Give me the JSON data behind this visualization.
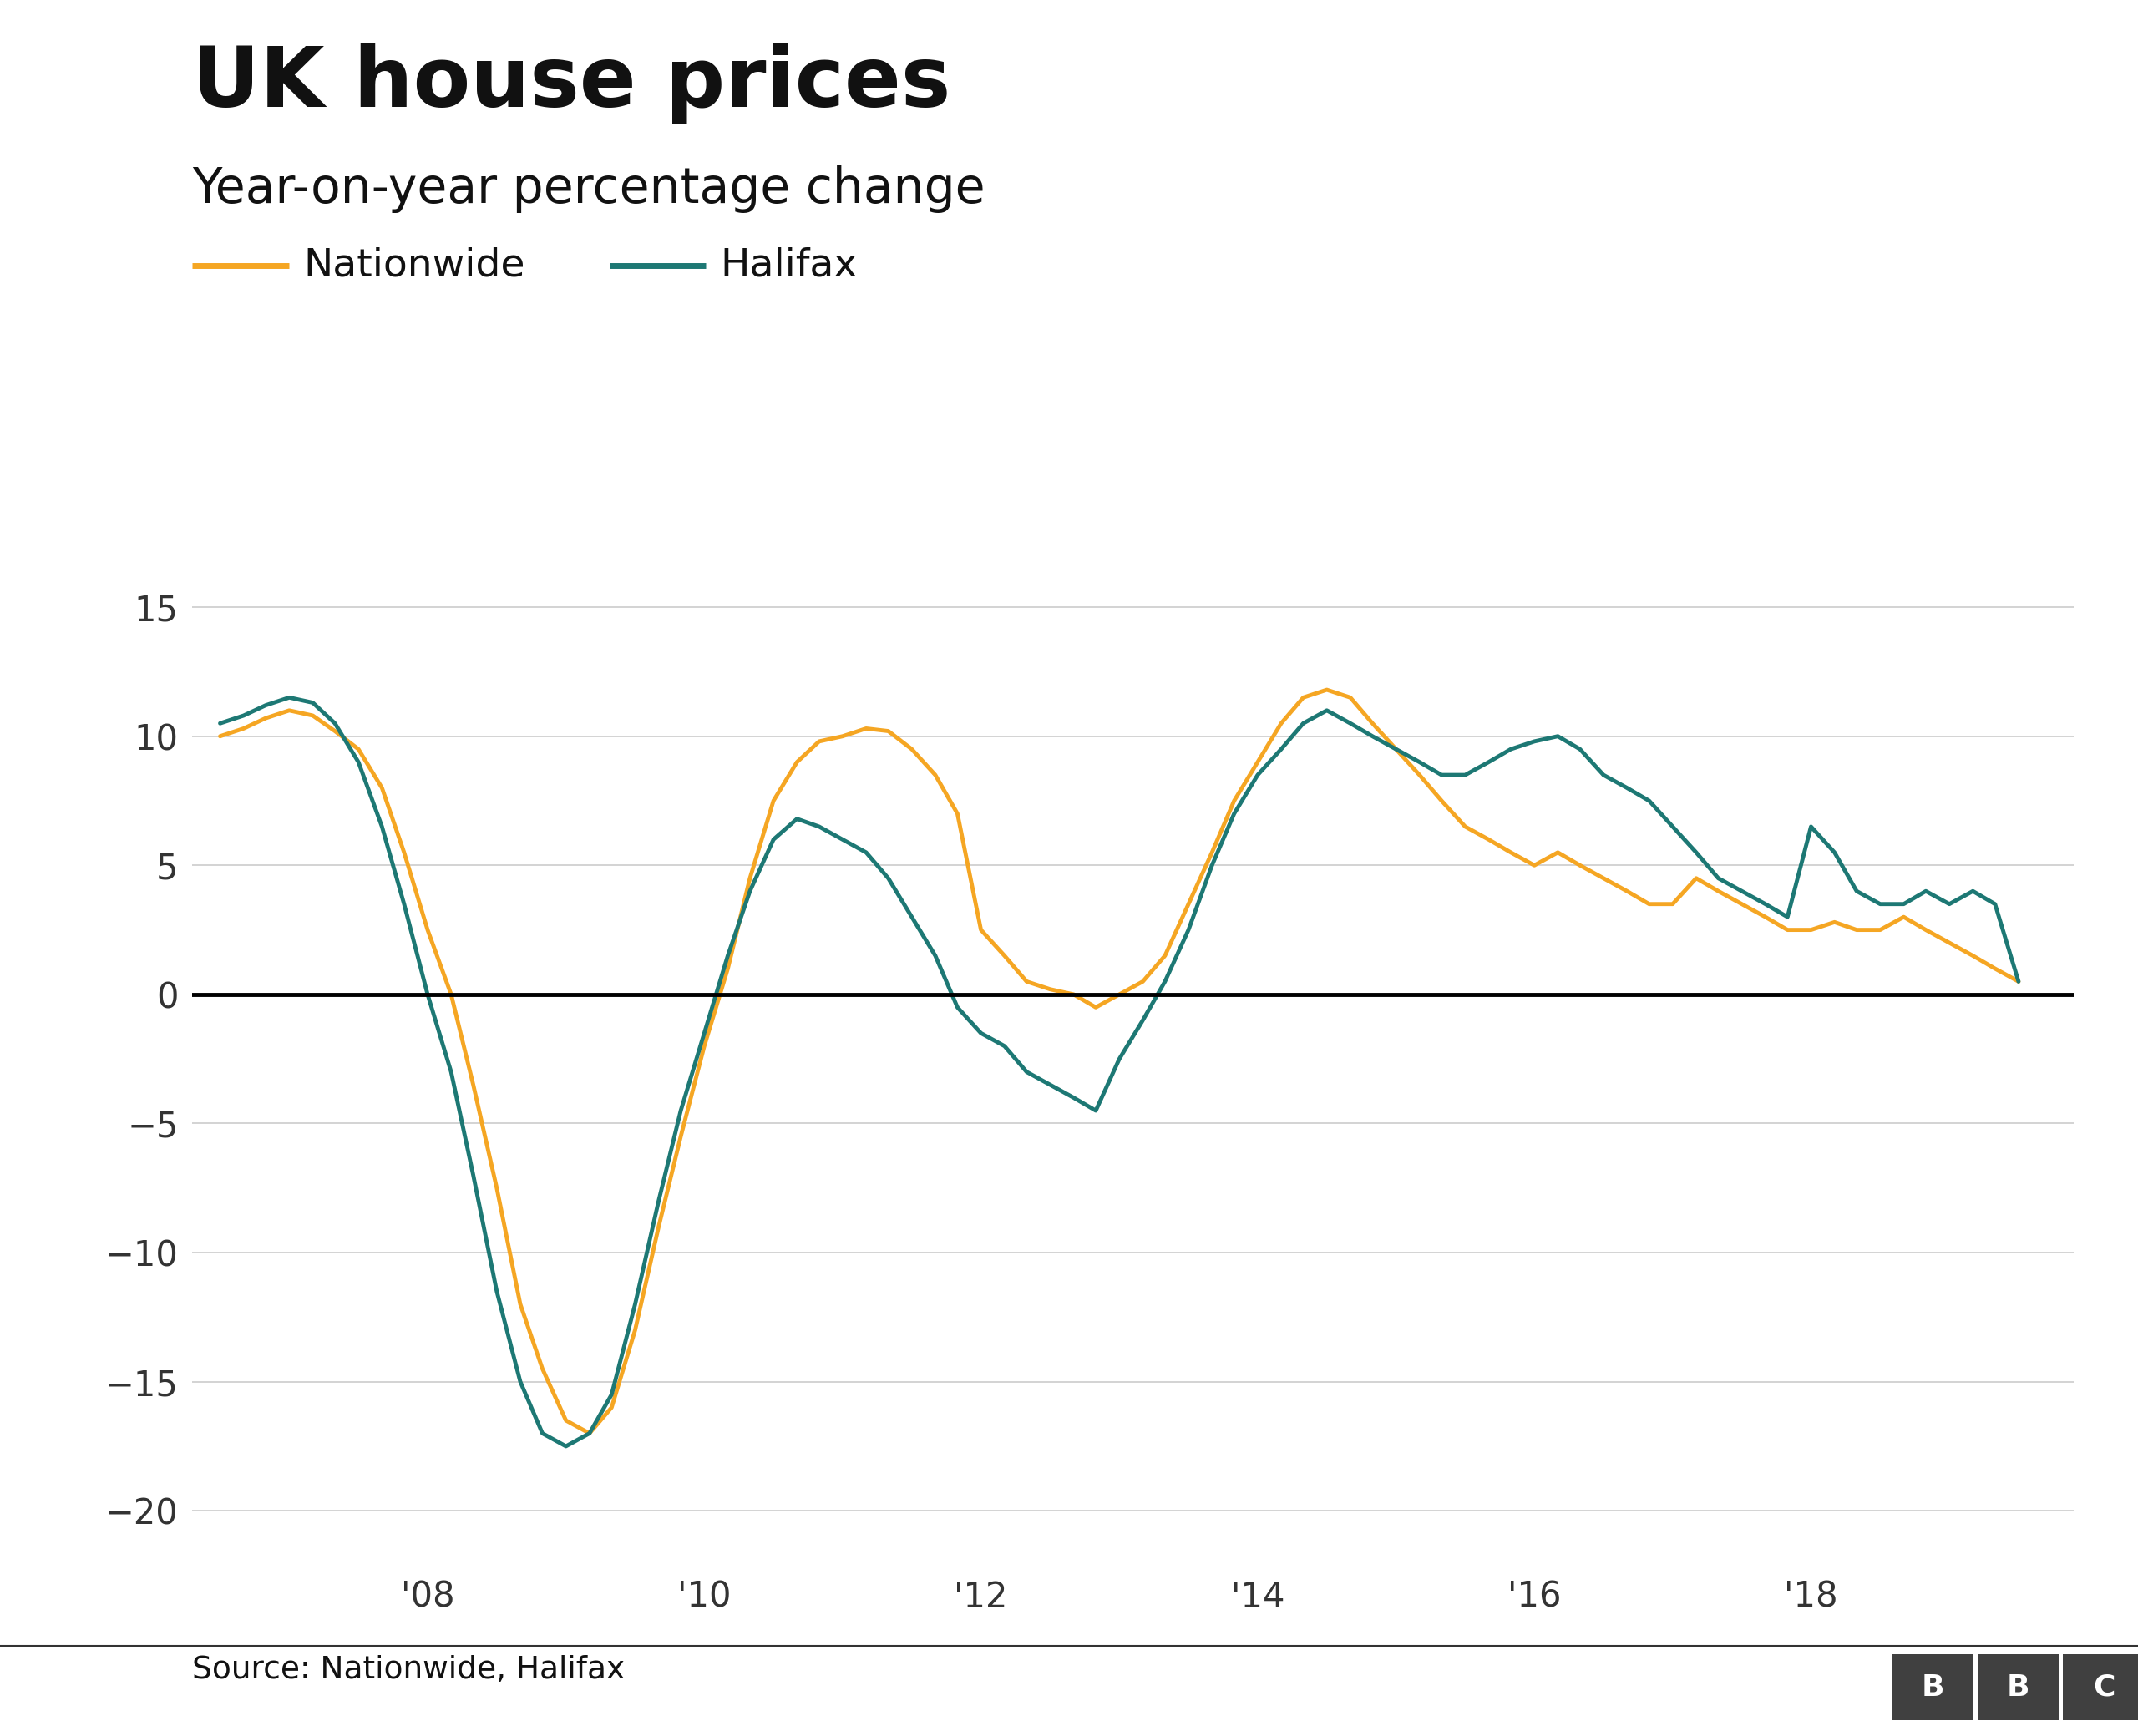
{
  "title": "UK house prices",
  "subtitle": "Year-on-year percentage change",
  "source": "Source: Nationwide, Halifax",
  "nationwide_color": "#F5A623",
  "halifax_color": "#1D7874",
  "background_color": "#ffffff",
  "grid_color": "#cccccc",
  "zero_line_color": "#000000",
  "ylim": [
    -22,
    17
  ],
  "yticks": [
    -20,
    -15,
    -10,
    -5,
    0,
    5,
    10,
    15
  ],
  "xtick_labels": [
    "'08",
    "'10",
    "'12",
    "'14",
    "'16",
    "'18"
  ],
  "line_width": 3.5,
  "nationwide": {
    "x": [
      2006.5,
      2006.67,
      2006.83,
      2007.0,
      2007.17,
      2007.33,
      2007.5,
      2007.67,
      2007.83,
      2008.0,
      2008.17,
      2008.33,
      2008.5,
      2008.67,
      2008.83,
      2009.0,
      2009.17,
      2009.33,
      2009.5,
      2009.67,
      2009.83,
      2010.0,
      2010.17,
      2010.33,
      2010.5,
      2010.67,
      2010.83,
      2011.0,
      2011.17,
      2011.33,
      2011.5,
      2011.67,
      2011.83,
      2012.0,
      2012.17,
      2012.33,
      2012.5,
      2012.67,
      2012.83,
      2013.0,
      2013.17,
      2013.33,
      2013.5,
      2013.67,
      2013.83,
      2014.0,
      2014.17,
      2014.33,
      2014.5,
      2014.67,
      2014.83,
      2015.0,
      2015.17,
      2015.33,
      2015.5,
      2015.67,
      2015.83,
      2016.0,
      2016.17,
      2016.33,
      2016.5,
      2016.67,
      2016.83,
      2017.0,
      2017.17,
      2017.33,
      2017.5,
      2017.67,
      2017.83,
      2018.0,
      2018.17,
      2018.33,
      2018.5,
      2018.67,
      2018.83,
      2019.0,
      2019.17,
      2019.33,
      2019.5
    ],
    "y": [
      10.0,
      10.3,
      10.7,
      11.0,
      10.8,
      10.2,
      9.5,
      8.0,
      5.5,
      2.5,
      0.0,
      -3.5,
      -7.5,
      -12.0,
      -14.5,
      -16.5,
      -17.0,
      -16.0,
      -13.0,
      -9.0,
      -5.5,
      -2.0,
      1.0,
      4.5,
      7.5,
      9.0,
      9.8,
      10.0,
      10.3,
      10.2,
      9.5,
      8.5,
      7.0,
      2.5,
      1.5,
      0.5,
      0.2,
      0.0,
      -0.5,
      0.0,
      0.5,
      1.5,
      3.5,
      5.5,
      7.5,
      9.0,
      10.5,
      11.5,
      11.8,
      11.5,
      10.5,
      9.5,
      8.5,
      7.5,
      6.5,
      6.0,
      5.5,
      5.0,
      5.5,
      5.0,
      4.5,
      4.0,
      3.5,
      3.5,
      4.5,
      4.0,
      3.5,
      3.0,
      2.5,
      2.5,
      2.8,
      2.5,
      2.5,
      3.0,
      2.5,
      2.0,
      1.5,
      1.0,
      0.5
    ]
  },
  "halifax": {
    "x": [
      2006.5,
      2006.67,
      2006.83,
      2007.0,
      2007.17,
      2007.33,
      2007.5,
      2007.67,
      2007.83,
      2008.0,
      2008.17,
      2008.33,
      2008.5,
      2008.67,
      2008.83,
      2009.0,
      2009.17,
      2009.33,
      2009.5,
      2009.67,
      2009.83,
      2010.0,
      2010.17,
      2010.33,
      2010.5,
      2010.67,
      2010.83,
      2011.0,
      2011.17,
      2011.33,
      2011.5,
      2011.67,
      2011.83,
      2012.0,
      2012.17,
      2012.33,
      2012.5,
      2012.67,
      2012.83,
      2013.0,
      2013.17,
      2013.33,
      2013.5,
      2013.67,
      2013.83,
      2014.0,
      2014.17,
      2014.33,
      2014.5,
      2014.67,
      2014.83,
      2015.0,
      2015.17,
      2015.33,
      2015.5,
      2015.67,
      2015.83,
      2016.0,
      2016.17,
      2016.33,
      2016.5,
      2016.67,
      2016.83,
      2017.0,
      2017.17,
      2017.33,
      2017.5,
      2017.67,
      2017.83,
      2018.0,
      2018.17,
      2018.33,
      2018.5,
      2018.67,
      2018.83,
      2019.0,
      2019.17,
      2019.33,
      2019.5
    ],
    "y": [
      10.5,
      10.8,
      11.2,
      11.5,
      11.3,
      10.5,
      9.0,
      6.5,
      3.5,
      0.0,
      -3.0,
      -7.0,
      -11.5,
      -15.0,
      -17.0,
      -17.5,
      -17.0,
      -15.5,
      -12.0,
      -8.0,
      -4.5,
      -1.5,
      1.5,
      4.0,
      6.0,
      6.8,
      6.5,
      6.0,
      5.5,
      4.5,
      3.0,
      1.5,
      -0.5,
      -1.5,
      -2.0,
      -3.0,
      -3.5,
      -4.0,
      -4.5,
      -2.5,
      -1.0,
      0.5,
      2.5,
      5.0,
      7.0,
      8.5,
      9.5,
      10.5,
      11.0,
      10.5,
      10.0,
      9.5,
      9.0,
      8.5,
      8.5,
      9.0,
      9.5,
      9.8,
      10.0,
      9.5,
      8.5,
      8.0,
      7.5,
      6.5,
      5.5,
      4.5,
      4.0,
      3.5,
      3.0,
      6.5,
      5.5,
      4.0,
      3.5,
      3.5,
      4.0,
      3.5,
      4.0,
      3.5,
      0.5
    ]
  }
}
